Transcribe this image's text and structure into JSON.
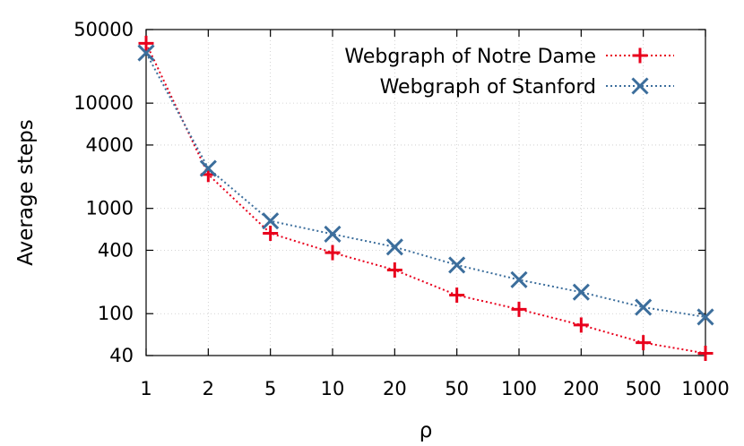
{
  "chart_data": {
    "type": "line",
    "title": "",
    "xlabel": "ρ",
    "ylabel": "Average steps",
    "x_scale": "categorical",
    "y_scale": "log",
    "categories": [
      "1",
      "2",
      "5",
      "10",
      "20",
      "50",
      "100",
      "200",
      "500",
      "1000"
    ],
    "ylim": [
      40,
      50000
    ],
    "y_ticks": [
      40,
      100,
      400,
      1000,
      4000,
      10000,
      50000
    ],
    "y_tick_labels": [
      "40",
      "100",
      "400",
      "1000",
      "4000",
      "10000",
      "50000"
    ],
    "grid": true,
    "legend_position": "top-right",
    "series": [
      {
        "name": "Webgraph of Notre Dame",
        "color": "#e8001c",
        "marker": "plus",
        "line_style": "dotted",
        "values": [
          37000,
          2100,
          580,
          380,
          260,
          150,
          110,
          78,
          53,
          42
        ]
      },
      {
        "name": "Webgraph of Stanford",
        "color": "#3c6e9c",
        "marker": "cross",
        "line_style": "dotted",
        "values": [
          30000,
          2400,
          760,
          570,
          430,
          290,
          210,
          160,
          115,
          93
        ]
      }
    ]
  }
}
